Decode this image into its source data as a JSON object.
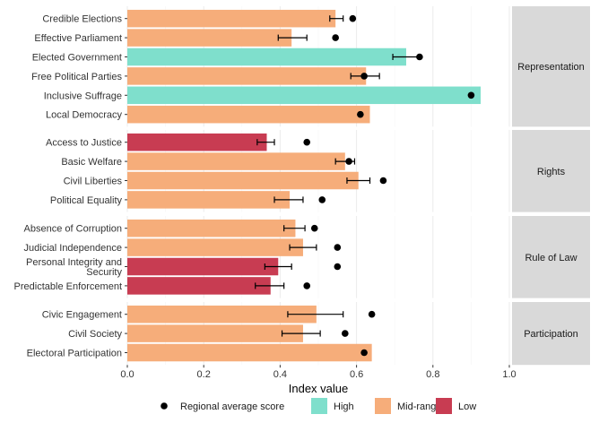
{
  "chart_data": {
    "type": "bar",
    "orientation": "horizontal",
    "xlabel": "Index value",
    "ylabel": "",
    "xlim": [
      0,
      1.0
    ],
    "x_ticks": [
      "0.0",
      "0.2",
      "0.4",
      "0.6",
      "0.8",
      "1.0"
    ],
    "grid": true,
    "legend_position": "bottom",
    "colors": {
      "High": "#7fdfcc",
      "Mid-range": "#f6ad7a",
      "Low": "#c83c52",
      "dot": "#000000",
      "panel": "#ffffff",
      "strip": "#d9d9d9"
    },
    "legend": {
      "dot_label": "Regional average score",
      "categories": [
        "High",
        "Mid-range",
        "Low"
      ]
    },
    "facets": [
      {
        "name": "Representation",
        "rows": [
          {
            "label": "Credible Elections",
            "value": 0.545,
            "error_low": 0.53,
            "error_high": 0.565,
            "regional_avg": 0.59,
            "group": "Mid-range"
          },
          {
            "label": "Effective Parliament",
            "value": 0.43,
            "error_low": 0.395,
            "error_high": 0.47,
            "regional_avg": 0.545,
            "group": "Mid-range"
          },
          {
            "label": "Elected Government",
            "value": 0.73,
            "error_low": 0.695,
            "error_high": 0.765,
            "regional_avg": 0.765,
            "group": "High"
          },
          {
            "label": "Free Political Parties",
            "value": 0.625,
            "error_low": 0.585,
            "error_high": 0.66,
            "regional_avg": 0.62,
            "group": "Mid-range"
          },
          {
            "label": "Inclusive Suffrage",
            "value": 0.925,
            "error_low": null,
            "error_high": null,
            "regional_avg": 0.9,
            "group": "High"
          },
          {
            "label": "Local Democracy",
            "value": 0.635,
            "error_low": null,
            "error_high": null,
            "regional_avg": 0.61,
            "group": "Mid-range"
          }
        ]
      },
      {
        "name": "Rights",
        "rows": [
          {
            "label": "Access to Justice",
            "value": 0.365,
            "error_low": 0.34,
            "error_high": 0.385,
            "regional_avg": 0.47,
            "group": "Low"
          },
          {
            "label": "Basic Welfare",
            "value": 0.57,
            "error_low": 0.545,
            "error_high": 0.595,
            "regional_avg": 0.58,
            "group": "Mid-range"
          },
          {
            "label": "Civil Liberties",
            "value": 0.605,
            "error_low": 0.575,
            "error_high": 0.635,
            "regional_avg": 0.67,
            "group": "Mid-range"
          },
          {
            "label": "Political Equality",
            "value": 0.425,
            "error_low": 0.385,
            "error_high": 0.46,
            "regional_avg": 0.51,
            "group": "Mid-range"
          }
        ]
      },
      {
        "name": "Rule of Law",
        "rows": [
          {
            "label": "Absence of Corruption",
            "value": 0.44,
            "error_low": 0.41,
            "error_high": 0.465,
            "regional_avg": 0.49,
            "group": "Mid-range"
          },
          {
            "label": "Judicial Independence",
            "value": 0.46,
            "error_low": 0.425,
            "error_high": 0.495,
            "regional_avg": 0.55,
            "group": "Mid-range"
          },
          {
            "label": "Personal Integrity and Security",
            "label_lines": [
              "Personal Integrity and",
              "Security"
            ],
            "value": 0.395,
            "error_low": 0.36,
            "error_high": 0.43,
            "regional_avg": 0.55,
            "group": "Low"
          },
          {
            "label": "Predictable Enforcement",
            "value": 0.375,
            "error_low": 0.335,
            "error_high": 0.41,
            "regional_avg": 0.47,
            "group": "Low"
          }
        ]
      },
      {
        "name": "Participation",
        "rows": [
          {
            "label": "Civic Engagement",
            "value": 0.495,
            "error_low": 0.42,
            "error_high": 0.565,
            "regional_avg": 0.64,
            "group": "Mid-range"
          },
          {
            "label": "Civil Society",
            "value": 0.46,
            "error_low": 0.405,
            "error_high": 0.505,
            "regional_avg": 0.57,
            "group": "Mid-range"
          },
          {
            "label": "Electoral Participation",
            "value": 0.64,
            "error_low": null,
            "error_high": null,
            "regional_avg": 0.62,
            "group": "Mid-range"
          }
        ]
      }
    ]
  }
}
